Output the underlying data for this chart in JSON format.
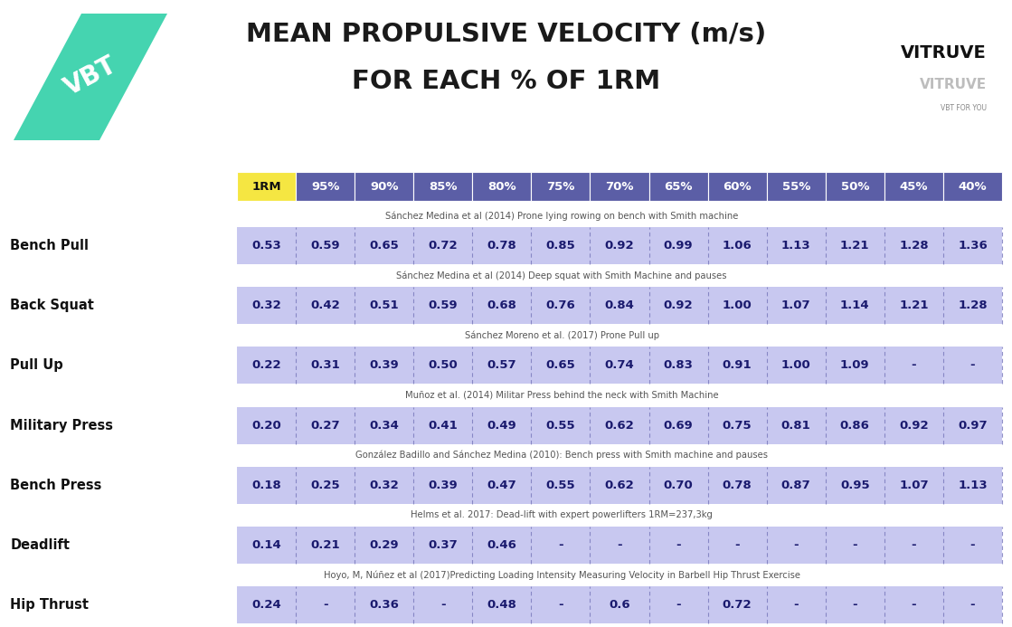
{
  "title_line1": "MEAN PROPULSIVE VELOCITY (m/s)",
  "title_line2": "FOR EACH % OF 1RM",
  "header_cols": [
    "1RM",
    "95%",
    "90%",
    "85%",
    "80%",
    "75%",
    "70%",
    "65%",
    "60%",
    "55%",
    "50%",
    "45%",
    "40%"
  ],
  "header_color_1rm": "#f5e642",
  "header_color_rest": "#5b5ea6",
  "header_text_color_1rm": "#111111",
  "header_text_color_rest": "#ffffff",
  "row_bg_color": "#c8c8f0",
  "exercises": [
    {
      "name": "Bench Pull",
      "citation": "Sánchez Medina et al (2014) Prone lying rowing on bench with Smith machine",
      "values": [
        "0.53",
        "0.59",
        "0.65",
        "0.72",
        "0.78",
        "0.85",
        "0.92",
        "0.99",
        "1.06",
        "1.13",
        "1.21",
        "1.28",
        "1.36"
      ]
    },
    {
      "name": "Back Squat",
      "citation": "Sánchez Medina et al (2014) Deep squat with Smith Machine and pauses",
      "values": [
        "0.32",
        "0.42",
        "0.51",
        "0.59",
        "0.68",
        "0.76",
        "0.84",
        "0.92",
        "1.00",
        "1.07",
        "1.14",
        "1.21",
        "1.28"
      ]
    },
    {
      "name": "Pull Up",
      "citation": "Sánchez Moreno et al. (2017) Prone Pull up",
      "values": [
        "0.22",
        "0.31",
        "0.39",
        "0.50",
        "0.57",
        "0.65",
        "0.74",
        "0.83",
        "0.91",
        "1.00",
        "1.09",
        "-",
        "-"
      ]
    },
    {
      "name": "Military Press",
      "citation": "Muñoz et al. (2014) Militar Press behind the neck with Smith Machine",
      "values": [
        "0.20",
        "0.27",
        "0.34",
        "0.41",
        "0.49",
        "0.55",
        "0.62",
        "0.69",
        "0.75",
        "0.81",
        "0.86",
        "0.92",
        "0.97"
      ]
    },
    {
      "name": "Bench Press",
      "citation": "González Badillo and Sánchez Medina (2010): Bench press with Smith machine and pauses",
      "values": [
        "0.18",
        "0.25",
        "0.32",
        "0.39",
        "0.47",
        "0.55",
        "0.62",
        "0.70",
        "0.78",
        "0.87",
        "0.95",
        "1.07",
        "1.13"
      ]
    },
    {
      "name": "Deadlift",
      "citation": "Helms et al. 2017: Dead-lift with expert powerlifters 1RM=237,3kg",
      "values": [
        "0.14",
        "0.21",
        "0.29",
        "0.37",
        "0.46",
        "-",
        "-",
        "-",
        "-",
        "-",
        "-",
        "-",
        "-"
      ]
    },
    {
      "name": "Hip Thrust",
      "citation": "Hoyo, M, Núñez et al (2017)Predicting Loading Intensity Measuring Velocity in Barbell Hip Thrust Exercise",
      "values": [
        "0.24",
        "-",
        "0.36",
        "-",
        "0.48",
        "-",
        "0.6",
        "-",
        "0.72",
        "-",
        "-",
        "-",
        "-"
      ]
    }
  ],
  "bg_color": "#ffffff",
  "vbt_color": "#45d4b0",
  "exercise_name_color": "#111111",
  "citation_color": "#555555",
  "value_text_color": "#1a1a6e",
  "separator_color": "#7777bb"
}
